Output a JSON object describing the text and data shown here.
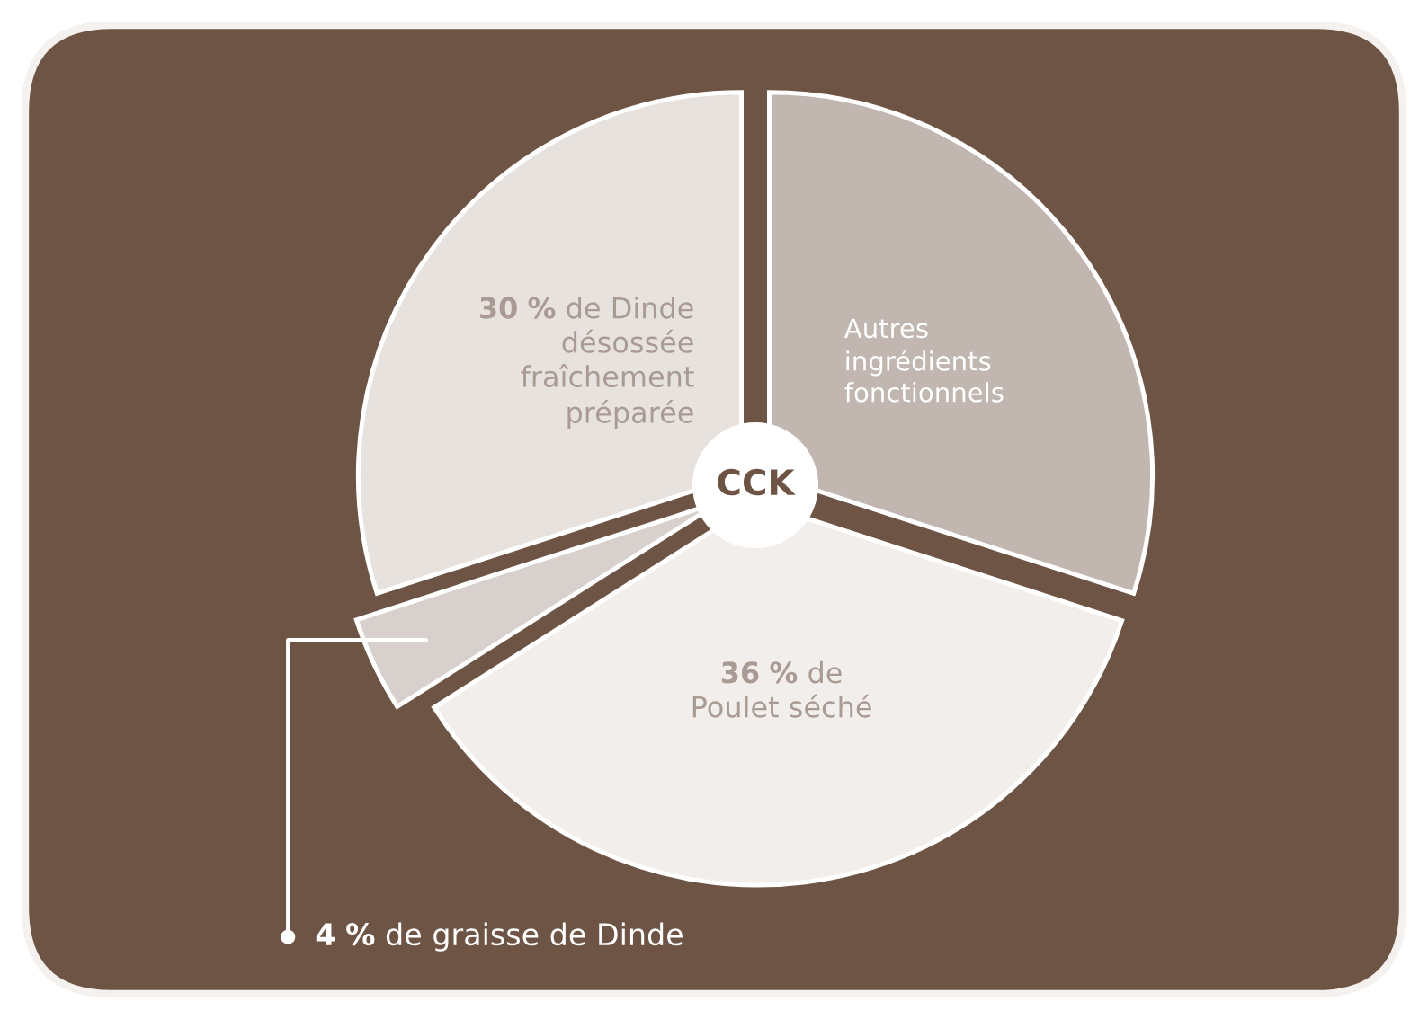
{
  "chart_data": {
    "type": "pie",
    "title": "CCK",
    "categories": [
      "Autres\ningrédients\nfonctionnels",
      "de\nPoulet séché",
      "de graisse de Dinde",
      "de Dinde\ndésossée\nfraîchement\npréparée"
    ],
    "values": [
      30,
      36,
      4,
      30
    ],
    "colors": [
      "#c1b6b0",
      "#f2eeec",
      "#d8d0cc",
      "#e8e2df"
    ],
    "value_labels": [
      null,
      "36 %",
      "4 %",
      "30 %"
    ]
  }
}
